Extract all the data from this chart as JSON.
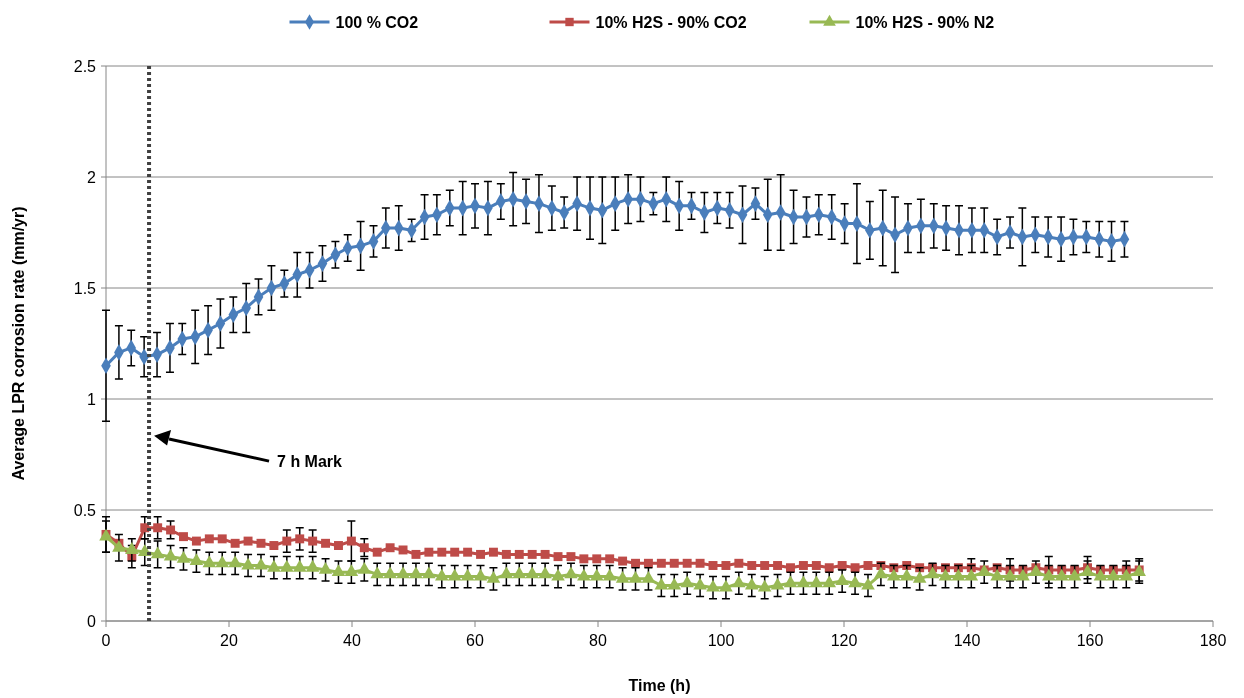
{
  "chart_data": {
    "type": "line",
    "xlabel": "Time (h)",
    "ylabel": "Average LPR corrosion rate (mm/yr)",
    "xlim": [
      0,
      180
    ],
    "xticks": [
      0,
      20,
      40,
      60,
      80,
      100,
      120,
      140,
      160,
      180
    ],
    "ylim": [
      0,
      2.5
    ],
    "yticks": [
      0,
      0.5,
      1,
      1.5,
      2,
      2.5
    ],
    "grid": "y",
    "legend": "top",
    "line_style": "solid",
    "ref_lines": [
      {
        "axis": "x",
        "value": 7,
        "color": "#404040",
        "line_style": "dotted"
      }
    ],
    "annotations": [
      "7 h Mark"
    ],
    "series": [
      {
        "name": "100 % CO2",
        "color": "#4a7ebb",
        "marker": "diamond",
        "x": [
          0,
          2.1,
          4.1,
          6.2,
          8.3,
          10.4,
          12.4,
          14.5,
          16.6,
          18.6,
          20.7,
          22.8,
          24.8,
          26.9,
          29,
          31.1,
          33.1,
          35.2,
          37.3,
          39.3,
          41.4,
          43.5,
          45.5,
          47.6,
          49.7,
          51.8,
          53.8,
          55.9,
          58,
          60,
          62.1,
          64.2,
          66.2,
          68.3,
          70.4,
          72.5,
          74.5,
          76.6,
          78.7,
          80.7,
          82.8,
          84.9,
          86.9,
          89,
          91.1,
          93.2,
          95.2,
          97.3,
          99.4,
          101.4,
          103.5,
          105.6,
          107.6,
          109.7,
          111.8,
          113.9,
          115.9,
          118,
          120.1,
          122.1,
          124.2,
          126.3,
          128.3,
          130.4,
          132.5,
          134.6,
          136.6,
          138.7,
          140.8,
          142.8,
          144.9,
          147,
          149,
          151.1,
          153.2,
          155.3,
          157.3,
          159.4,
          161.5,
          163.5,
          165.6
        ],
        "values": [
          1.15,
          1.21,
          1.23,
          1.19,
          1.2,
          1.23,
          1.27,
          1.28,
          1.31,
          1.34,
          1.38,
          1.41,
          1.46,
          1.5,
          1.52,
          1.56,
          1.58,
          1.61,
          1.65,
          1.68,
          1.69,
          1.71,
          1.77,
          1.77,
          1.76,
          1.82,
          1.83,
          1.86,
          1.86,
          1.87,
          1.86,
          1.89,
          1.9,
          1.89,
          1.88,
          1.86,
          1.84,
          1.88,
          1.86,
          1.85,
          1.88,
          1.9,
          1.9,
          1.88,
          1.9,
          1.87,
          1.87,
          1.84,
          1.86,
          1.85,
          1.83,
          1.88,
          1.83,
          1.84,
          1.82,
          1.82,
          1.83,
          1.82,
          1.79,
          1.79,
          1.76,
          1.77,
          1.74,
          1.77,
          1.78,
          1.78,
          1.77,
          1.76,
          1.76,
          1.76,
          1.73,
          1.75,
          1.73,
          1.74,
          1.73,
          1.72,
          1.73,
          1.73,
          1.72,
          1.71,
          1.72
        ],
        "errors": [
          0.25,
          0.12,
          0.08,
          0.09,
          0.1,
          0.11,
          0.07,
          0.12,
          0.11,
          0.11,
          0.08,
          0.11,
          0.08,
          0.1,
          0.06,
          0.1,
          0.08,
          0.08,
          0.06,
          0.06,
          0.11,
          0.07,
          0.09,
          0.1,
          0.05,
          0.1,
          0.09,
          0.08,
          0.12,
          0.1,
          0.12,
          0.08,
          0.12,
          0.1,
          0.13,
          0.1,
          0.07,
          0.12,
          0.14,
          0.15,
          0.12,
          0.11,
          0.1,
          0.05,
          0.1,
          0.11,
          0.06,
          0.09,
          0.07,
          0.08,
          0.13,
          0.07,
          0.16,
          0.17,
          0.12,
          0.09,
          0.09,
          0.1,
          0.09,
          0.18,
          0.13,
          0.17,
          0.17,
          0.11,
          0.12,
          0.1,
          0.1,
          0.11,
          0.1,
          0.1,
          0.08,
          0.07,
          0.13,
          0.08,
          0.09,
          0.1,
          0.08,
          0.07,
          0.08,
          0.09,
          0.08
        ]
      },
      {
        "name": "10% H2S - 90% CO2",
        "color": "#be4b48",
        "marker": "square",
        "x": [
          0,
          2.1,
          4.2,
          6.3,
          8.4,
          10.5,
          12.6,
          14.7,
          16.8,
          18.9,
          21,
          23.1,
          25.2,
          27.3,
          29.4,
          31.5,
          33.6,
          35.7,
          37.8,
          39.9,
          42,
          44.1,
          46.2,
          48.3,
          50.4,
          52.5,
          54.6,
          56.7,
          58.8,
          60.9,
          63,
          65.1,
          67.2,
          69.3,
          71.4,
          73.5,
          75.6,
          77.7,
          79.8,
          81.9,
          84,
          86.1,
          88.2,
          90.3,
          92.4,
          94.5,
          96.6,
          98.7,
          100.8,
          102.9,
          105,
          107.1,
          109.2,
          111.3,
          113.4,
          115.5,
          117.6,
          119.7,
          121.8,
          123.9,
          126,
          128.1,
          130.2,
          132.3,
          134.4,
          136.5,
          138.6,
          140.7,
          142.8,
          144.9,
          147,
          149.1,
          151.2,
          153.3,
          155.4,
          157.5,
          159.6,
          161.7,
          163.8,
          165.9,
          168
        ],
        "values": [
          0.39,
          0.35,
          0.29,
          0.42,
          0.42,
          0.41,
          0.38,
          0.36,
          0.37,
          0.37,
          0.35,
          0.36,
          0.35,
          0.34,
          0.36,
          0.37,
          0.36,
          0.35,
          0.34,
          0.36,
          0.33,
          0.31,
          0.33,
          0.32,
          0.3,
          0.31,
          0.31,
          0.31,
          0.31,
          0.3,
          0.31,
          0.3,
          0.3,
          0.3,
          0.3,
          0.29,
          0.29,
          0.28,
          0.28,
          0.28,
          0.27,
          0.26,
          0.26,
          0.26,
          0.26,
          0.26,
          0.26,
          0.25,
          0.25,
          0.26,
          0.25,
          0.25,
          0.25,
          0.24,
          0.25,
          0.25,
          0.24,
          0.25,
          0.24,
          0.25,
          0.25,
          0.24,
          0.25,
          0.24,
          0.24,
          0.24,
          0.24,
          0.24,
          0.23,
          0.24,
          0.23,
          0.23,
          0.24,
          0.23,
          0.23,
          0.23,
          0.24,
          0.23,
          0.23,
          0.23,
          0.23
        ],
        "errors": [
          0.08,
          null,
          0.05,
          0.05,
          0.05,
          0.04,
          null,
          null,
          null,
          null,
          null,
          null,
          null,
          null,
          0.05,
          0.05,
          0.05,
          null,
          null,
          0.09,
          0.04,
          null,
          null,
          null,
          null,
          null,
          null,
          null,
          null,
          null,
          null,
          null,
          null,
          null,
          null,
          null,
          null,
          null,
          null,
          null,
          null,
          null,
          null,
          null,
          null,
          null,
          null,
          null,
          null,
          null,
          null,
          null,
          null,
          null,
          null,
          null,
          null,
          null,
          null,
          null,
          null,
          null,
          null,
          null,
          null,
          null,
          null,
          0.04,
          null,
          null,
          0.05,
          null,
          null,
          0.06,
          null,
          null,
          0.05,
          null,
          null,
          0.04,
          0.05
        ]
      },
      {
        "name": "10% H2S - 90% N2",
        "color": "#98b954",
        "marker": "triangle",
        "x": [
          0,
          2.1,
          4.2,
          6.3,
          8.4,
          10.5,
          12.6,
          14.7,
          16.8,
          18.9,
          21,
          23.1,
          25.2,
          27.3,
          29.4,
          31.5,
          33.6,
          35.7,
          37.8,
          39.9,
          42,
          44.1,
          46.2,
          48.3,
          50.4,
          52.5,
          54.6,
          56.7,
          58.8,
          60.9,
          63,
          65.1,
          67.2,
          69.3,
          71.4,
          73.5,
          75.6,
          77.7,
          79.8,
          81.9,
          84,
          86.1,
          88.2,
          90.3,
          92.4,
          94.5,
          96.6,
          98.7,
          100.8,
          102.9,
          105,
          107.1,
          109.2,
          111.3,
          113.4,
          115.5,
          117.6,
          119.7,
          121.8,
          123.9,
          126,
          128.1,
          130.2,
          132.3,
          134.4,
          136.5,
          138.6,
          140.7,
          142.8,
          144.9,
          147,
          149.1,
          151.2,
          153.3,
          155.4,
          157.5,
          159.6,
          161.7,
          163.8,
          165.9,
          168
        ],
        "values": [
          0.38,
          0.33,
          0.32,
          0.31,
          0.3,
          0.29,
          0.28,
          0.27,
          0.26,
          0.26,
          0.26,
          0.25,
          0.25,
          0.24,
          0.24,
          0.24,
          0.24,
          0.23,
          0.22,
          0.22,
          0.23,
          0.21,
          0.21,
          0.21,
          0.21,
          0.21,
          0.2,
          0.2,
          0.2,
          0.2,
          0.19,
          0.21,
          0.21,
          0.21,
          0.21,
          0.2,
          0.21,
          0.2,
          0.2,
          0.2,
          0.19,
          0.19,
          0.19,
          0.16,
          0.16,
          0.17,
          0.16,
          0.15,
          0.15,
          0.17,
          0.16,
          0.15,
          0.16,
          0.17,
          0.17,
          0.17,
          0.17,
          0.18,
          0.17,
          0.16,
          0.21,
          0.2,
          0.2,
          0.19,
          0.21,
          0.2,
          0.2,
          0.2,
          0.22,
          0.2,
          0.2,
          0.2,
          0.22,
          0.2,
          0.2,
          0.2,
          0.22,
          0.2,
          0.2,
          0.2,
          0.22
        ],
        "errors": [
          0.07,
          0.06,
          0.05,
          0.06,
          0.06,
          0.05,
          0.05,
          0.05,
          0.05,
          0.05,
          0.05,
          0.05,
          0.05,
          0.05,
          0.05,
          0.05,
          0.05,
          0.05,
          0.05,
          0.05,
          0.05,
          0.05,
          0.05,
          0.05,
          0.05,
          0.05,
          0.05,
          0.05,
          0.05,
          0.05,
          0.05,
          0.05,
          0.05,
          0.05,
          0.05,
          0.05,
          0.05,
          0.05,
          0.05,
          0.05,
          0.05,
          0.05,
          0.05,
          0.05,
          0.05,
          0.05,
          0.05,
          0.05,
          0.05,
          0.05,
          0.05,
          0.05,
          0.05,
          0.05,
          0.05,
          0.05,
          0.05,
          0.05,
          0.05,
          0.05,
          0.05,
          0.05,
          0.05,
          0.05,
          0.05,
          0.05,
          0.05,
          0.05,
          0.05,
          0.05,
          0.05,
          0.05,
          0.05,
          0.05,
          0.05,
          0.05,
          0.05,
          0.05,
          0.05,
          0.05,
          0.05
        ]
      }
    ]
  }
}
